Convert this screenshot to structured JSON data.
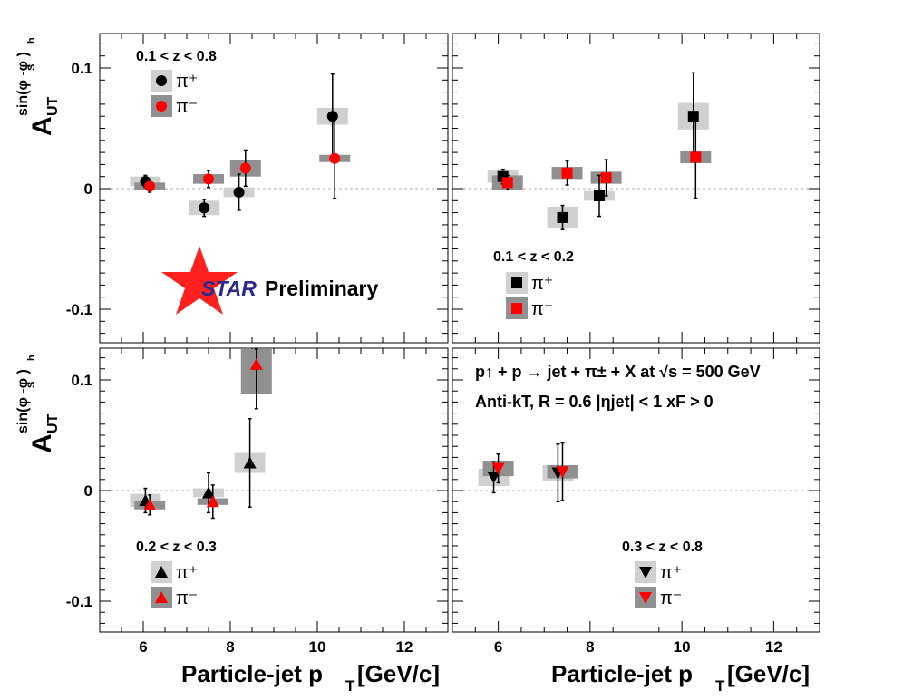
{
  "chart_data": {
    "type": "scatter",
    "xlabel_main": "Particle-jet p",
    "xlabel_sub": "T",
    "xlabel_unit": " [GeV/c]",
    "ylabel_main": "A",
    "ylabel_sub": "UT",
    "ylabel_sup": "sin(φ  -φ )",
    "ylabel_sup_sub1": "S",
    "ylabel_sup_sub2": "h",
    "xlim": [
      5,
      13
    ],
    "ylim": [
      -0.13,
      0.13
    ],
    "xticks": [
      "6",
      "8",
      "10",
      "12"
    ],
    "yticks": [
      "0.1",
      "0",
      "-0.1"
    ],
    "watermark": {
      "italic": "STAR",
      "text": " Preliminary"
    },
    "info": {
      "line1": "p↑ + p → jet + π± + X at √s = 500 GeV",
      "line2": "Anti-kT, R = 0.6    |ηjet| < 1    xF > 0"
    },
    "legend_labels": {
      "pi_plus": "π⁺",
      "pi_minus": "π⁻"
    },
    "colors": {
      "pi_plus": "#000000",
      "pi_minus": "#ff0000",
      "sys_plus": "#d0d0d0",
      "sys_minus": "#909090"
    },
    "panels": [
      {
        "label": "0.1 < z < 0.8",
        "marker": "circle",
        "series": [
          {
            "name": "π⁺",
            "x": [
              6.05,
              7.4,
              8.2,
              10.35
            ],
            "y": [
              0.006,
              -0.016,
              -0.003,
              0.06
            ],
            "err": [
              0.005,
              0.007,
              0.015,
              0.035
            ],
            "sys": [
              0.004,
              0.006,
              0.004,
              0.007
            ]
          },
          {
            "name": "π⁻",
            "x": [
              6.15,
              7.5,
              8.35,
              10.4
            ],
            "y": [
              0.002,
              0.008,
              0.017,
              0.025
            ],
            "err": [
              0.005,
              0.007,
              0.015,
              0.033
            ],
            "sys": [
              0.003,
              0.004,
              0.007,
              0.003
            ]
          }
        ]
      },
      {
        "label": "0.1 < z < 0.2",
        "marker": "square",
        "series": [
          {
            "name": "π⁺",
            "x": [
              6.1,
              7.4,
              8.2,
              10.25
            ],
            "y": [
              0.01,
              -0.024,
              -0.006,
              0.06
            ],
            "err": [
              0.006,
              0.01,
              0.017,
              0.036
            ],
            "sys": [
              0.005,
              0.009,
              0.004,
              0.011
            ]
          },
          {
            "name": "π⁻",
            "x": [
              6.2,
              7.5,
              8.35,
              10.3
            ],
            "y": [
              0.005,
              0.013,
              0.009,
              0.026
            ],
            "err": [
              0.006,
              0.01,
              0.015,
              0.034
            ],
            "sys": [
              0.006,
              0.005,
              0.005,
              0.005
            ]
          }
        ]
      },
      {
        "label": "0.2 < z < 0.3",
        "marker": "triangle-up",
        "series": [
          {
            "name": "π⁺",
            "x": [
              6.05,
              7.5,
              8.45
            ],
            "y": [
              -0.009,
              -0.002,
              0.025
            ],
            "err": [
              0.011,
              0.018,
              0.04
            ],
            "sys": [
              0.006,
              0.004,
              0.009
            ]
          },
          {
            "name": "π⁻",
            "x": [
              6.15,
              7.6,
              8.6
            ],
            "y": [
              -0.013,
              -0.01,
              0.114
            ],
            "err": [
              0.009,
              0.015,
              0.04
            ],
            "sys": [
              0.004,
              0.003,
              0.027
            ]
          }
        ]
      },
      {
        "label": "0.3 < z < 0.8",
        "marker": "triangle-down",
        "series": [
          {
            "name": "π⁺",
            "x": [
              5.9,
              7.3
            ],
            "y": [
              0.012,
              0.016
            ],
            "err": [
              0.014,
              0.026
            ],
            "sys": [
              0.008,
              0.007
            ]
          },
          {
            "name": "π⁻",
            "x": [
              6.0,
              7.4
            ],
            "y": [
              0.02,
              0.017
            ],
            "err": [
              0.013,
              0.026
            ],
            "sys": [
              0.007,
              0.006
            ]
          }
        ]
      }
    ]
  }
}
